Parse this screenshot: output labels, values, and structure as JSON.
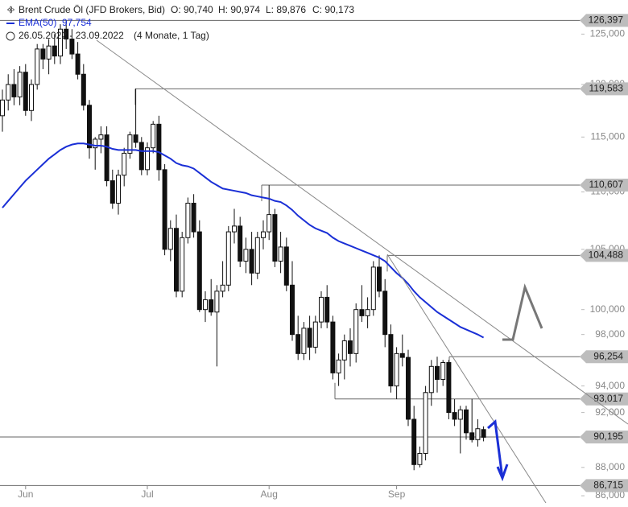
{
  "chart_data": {
    "type": "candlestick",
    "title": "Brent Crude Öl (JFD Brokers, Bid)",
    "ohlc_labels": [
      "O: 90,740",
      "H: 90,974",
      "L: 89,876",
      "C: 90,173"
    ],
    "indicator": {
      "name": "EMA(50)",
      "value_label": "97,754",
      "color": "#1a2fd6",
      "values": [
        108600,
        109200,
        109800,
        110400,
        111000,
        111500,
        112000,
        112500,
        113000,
        113400,
        113800,
        114100,
        114300,
        114400,
        114400,
        114300,
        114200,
        114200,
        114100,
        113900,
        113800,
        113800,
        113800,
        113800,
        113700,
        113700,
        113700,
        113600,
        113300,
        113000,
        112600,
        112400,
        112300,
        112100,
        111700,
        111300,
        110900,
        110600,
        110300,
        110200,
        110100,
        110000,
        109900,
        109700,
        109600,
        109500,
        109400,
        109200,
        109100,
        108800,
        108400,
        107900,
        107500,
        107100,
        106800,
        106600,
        106400,
        106000,
        105700,
        105500,
        105300,
        105100,
        104900,
        104700,
        104500,
        104300,
        104000,
        103500,
        103000,
        102600,
        102100,
        101500,
        101000,
        100600,
        100200,
        99800,
        99500,
        99200,
        98900,
        98600,
        98400,
        98200,
        98000,
        97754
      ]
    },
    "period": "26.05.2022 - 23.09.2022",
    "period_note": "(4 Monate, 1 Tag)",
    "log_scale": true,
    "ylim": [
      85500,
      128500
    ],
    "yticks": [
      {
        "value": 125000,
        "label": "125,000"
      },
      {
        "value": 120000,
        "label": "120,000"
      },
      {
        "value": 115000,
        "label": "115,000"
      },
      {
        "value": 110000,
        "label": "110,000"
      },
      {
        "value": 105000,
        "label": "105,000"
      },
      {
        "value": 100000,
        "label": "100,000"
      },
      {
        "value": 98000,
        "label": "98,000"
      },
      {
        "value": 94000,
        "label": "94,000"
      },
      {
        "value": 92000,
        "label": "92,000"
      },
      {
        "value": 88000,
        "label": "88,000"
      },
      {
        "value": 86000,
        "label": "86,000"
      }
    ],
    "xticks": [
      {
        "value": 4,
        "label": "Jun"
      },
      {
        "value": 25,
        "label": "Jul"
      },
      {
        "value": 46,
        "label": "Aug"
      },
      {
        "value": 68,
        "label": "Sep"
      }
    ],
    "levels": [
      {
        "value": 126397,
        "label": "126,397"
      },
      {
        "value": 119583,
        "label": "119,583"
      },
      {
        "value": 110607,
        "label": "110,607"
      },
      {
        "value": 104488,
        "label": "104,488"
      },
      {
        "value": 96254,
        "label": "96,254"
      },
      {
        "value": 93017,
        "label": "93,017"
      },
      {
        "value": 90195,
        "label": "90,195"
      },
      {
        "value": 86715,
        "label": "86,715"
      }
    ],
    "candles": [
      [
        117000,
        119500,
        115500,
        118500
      ],
      [
        118500,
        121000,
        117500,
        120000
      ],
      [
        120000,
        121500,
        118000,
        118800
      ],
      [
        118800,
        121800,
        118000,
        121200
      ],
      [
        121200,
        122000,
        117000,
        117500
      ],
      [
        117500,
        120500,
        116500,
        120000
      ],
      [
        120000,
        124000,
        119500,
        123500
      ],
      [
        123500,
        124000,
        121500,
        122500
      ],
      [
        122500,
        124500,
        121000,
        123800
      ],
      [
        123800,
        125000,
        122000,
        122800
      ],
      [
        122800,
        126000,
        122000,
        125500
      ],
      [
        125500,
        126397,
        123500,
        124500
      ],
      [
        124500,
        125500,
        122500,
        123000
      ],
      [
        123000,
        124200,
        120500,
        121000
      ],
      [
        121000,
        122000,
        117500,
        118000
      ],
      [
        118000,
        118500,
        113000,
        114000
      ],
      [
        114000,
        115000,
        112000,
        114800
      ],
      [
        114800,
        116000,
        113500,
        115200
      ],
      [
        115200,
        116000,
        110500,
        111000
      ],
      [
        111000,
        112000,
        108500,
        109000
      ],
      [
        109000,
        112000,
        108000,
        111500
      ],
      [
        111500,
        114000,
        110500,
        113500
      ],
      [
        113500,
        115500,
        113000,
        115200
      ],
      [
        115200,
        119583,
        114000,
        114500
      ],
      [
        114500,
        115000,
        111500,
        112000
      ],
      [
        112000,
        114500,
        111500,
        114000
      ],
      [
        114000,
        116500,
        113500,
        116200
      ],
      [
        116200,
        117000,
        111000,
        112000
      ],
      [
        112000,
        112500,
        104500,
        105000
      ],
      [
        105000,
        107500,
        104000,
        106800
      ],
      [
        106800,
        108000,
        101000,
        101500
      ],
      [
        101500,
        106500,
        101000,
        106000
      ],
      [
        106000,
        109500,
        105500,
        109000
      ],
      [
        109000,
        109800,
        106000,
        106500
      ],
      [
        106500,
        107500,
        99800,
        100000
      ],
      [
        100000,
        101500,
        99000,
        100800
      ],
      [
        100800,
        102500,
        99500,
        99800
      ],
      [
        99800,
        102000,
        95500,
        101500
      ],
      [
        101500,
        104000,
        101000,
        102000
      ],
      [
        102000,
        107000,
        101500,
        106500
      ],
      [
        106500,
        108500,
        105500,
        107000
      ],
      [
        107000,
        107800,
        103500,
        104000
      ],
      [
        104000,
        106000,
        103000,
        105000
      ],
      [
        105000,
        106500,
        102000,
        103000
      ],
      [
        103000,
        106500,
        102500,
        106000
      ],
      [
        106000,
        107500,
        105000,
        106500
      ],
      [
        106500,
        110607,
        105800,
        108000
      ],
      [
        108000,
        108500,
        103500,
        104000
      ],
      [
        104000,
        106500,
        103000,
        105200
      ],
      [
        105200,
        106000,
        101500,
        102000
      ],
      [
        102000,
        104000,
        97500,
        98000
      ],
      [
        98000,
        99500,
        96000,
        96500
      ],
      [
        96500,
        99000,
        96000,
        98500
      ],
      [
        98500,
        99500,
        96000,
        97000
      ],
      [
        97000,
        99500,
        96500,
        99000
      ],
      [
        99000,
        101500,
        98500,
        101000
      ],
      [
        101000,
        102000,
        98500,
        99000
      ],
      [
        99000,
        99500,
        94500,
        95000
      ],
      [
        95000,
        96500,
        94000,
        96000
      ],
      [
        96000,
        98000,
        94500,
        97500
      ],
      [
        97500,
        98500,
        95500,
        96500
      ],
      [
        96500,
        100500,
        95800,
        100000
      ],
      [
        100000,
        102000,
        99000,
        99500
      ],
      [
        99500,
        101000,
        98500,
        100000
      ],
      [
        100000,
        104000,
        99500,
        103500
      ],
      [
        103500,
        104488,
        101000,
        101500
      ],
      [
        101500,
        102500,
        97000,
        98000
      ],
      [
        98000,
        98800,
        93500,
        94000
      ],
      [
        94000,
        97000,
        93000,
        96500
      ],
      [
        96500,
        98000,
        95500,
        96200
      ],
      [
        96200,
        96800,
        91000,
        91500
      ],
      [
        91500,
        92500,
        87800,
        88200
      ],
      [
        88200,
        89500,
        88000,
        89000
      ],
      [
        89000,
        94000,
        88500,
        93500
      ],
      [
        93500,
        96000,
        92500,
        95500
      ],
      [
        95500,
        96254,
        93500,
        94500
      ],
      [
        94500,
        96000,
        94000,
        95800
      ],
      [
        95800,
        96000,
        91500,
        92000
      ],
      [
        92000,
        93000,
        91000,
        91500
      ],
      [
        91500,
        92500,
        89000,
        92200
      ],
      [
        92200,
        92500,
        90000,
        90500
      ],
      [
        90500,
        93017,
        89800,
        90000
      ],
      [
        90000,
        91500,
        89500,
        90800
      ],
      [
        90740,
        90974,
        89876,
        90173
      ]
    ]
  }
}
